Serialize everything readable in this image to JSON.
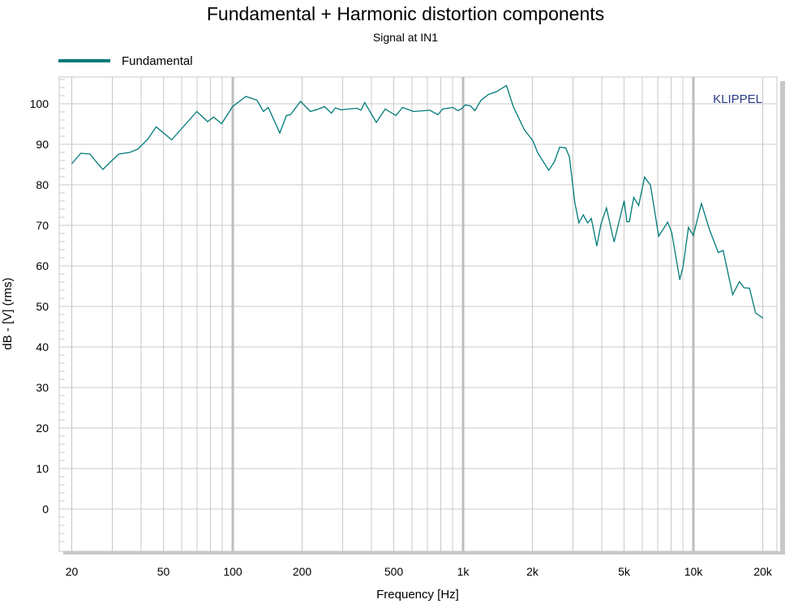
{
  "chart_data": {
    "type": "line",
    "title": "Fundamental + Harmonic distortion components",
    "subtitle": "Signal at IN1",
    "xlabel": "Frequency [Hz]",
    "ylabel": "dB - [V]  (rms)",
    "watermark": "KLIPPEL",
    "xscale": "log",
    "xlim": [
      20,
      20000
    ],
    "ylim": [
      -10.4,
      106.6
    ],
    "grid": true,
    "legend_position": "top-left",
    "x_ticks": [
      {
        "value": 20,
        "label": "20"
      },
      {
        "value": 50,
        "label": "50"
      },
      {
        "value": 100,
        "label": "100"
      },
      {
        "value": 200,
        "label": "200"
      },
      {
        "value": 500,
        "label": "500"
      },
      {
        "value": 1000,
        "label": "1k"
      },
      {
        "value": 2000,
        "label": "2k"
      },
      {
        "value": 5000,
        "label": "5k"
      },
      {
        "value": 10000,
        "label": "10k"
      },
      {
        "value": 20000,
        "label": "20k"
      }
    ],
    "y_ticks": [
      {
        "value": 0,
        "label": "0"
      },
      {
        "value": 10,
        "label": "10"
      },
      {
        "value": 20,
        "label": "20"
      },
      {
        "value": 30,
        "label": "30"
      },
      {
        "value": 40,
        "label": "40"
      },
      {
        "value": 50,
        "label": "50"
      },
      {
        "value": 60,
        "label": "60"
      },
      {
        "value": 70,
        "label": "70"
      },
      {
        "value": 80,
        "label": "80"
      },
      {
        "value": 90,
        "label": "90"
      },
      {
        "value": 100,
        "label": "100"
      }
    ],
    "series": [
      {
        "name": "Fundamental",
        "color": "#007a78",
        "x": [
          20,
          21.9,
          24,
          25.6,
          27.3,
          29.4,
          32,
          35.7,
          38.7,
          42.7,
          46.5,
          54.3,
          69.8,
          77.8,
          82.5,
          89.5,
          99.8,
          114,
          127.2,
          136,
          142.6,
          160,
          171,
          178,
          197,
          217,
          233,
          250,
          268,
          279,
          294,
          346,
          360,
          374,
          420,
          459,
          511,
          546,
          610,
          717,
          777,
          815,
          901,
          950,
          992,
          1021,
          1075,
          1126,
          1197,
          1290,
          1398,
          1543,
          1652,
          1844,
          2013,
          2108,
          2354,
          2487,
          2627,
          2789,
          2894,
          3057,
          3183,
          3326,
          3476,
          3603,
          3808,
          3967,
          4193,
          4524,
          5003,
          5142,
          5271,
          5506,
          5783,
          6137,
          6514,
          7066,
          7729,
          8050,
          8730,
          9018,
          9516,
          9990,
          10834,
          11751,
          12829,
          13470,
          14800,
          15830,
          16610,
          17530,
          18610,
          20060
        ],
        "y": [
          85.2,
          87.8,
          87.6,
          85.6,
          83.8,
          85.6,
          87.6,
          88,
          88.8,
          91.2,
          94.3,
          91.1,
          98.1,
          95.6,
          96.7,
          95.1,
          99.3,
          101.8,
          100.9,
          98.1,
          99.1,
          92.8,
          97.1,
          97.3,
          100.6,
          98.1,
          98.6,
          99.3,
          97.7,
          99,
          98.5,
          98.9,
          98.4,
          100.3,
          95.4,
          98.7,
          97.1,
          99.1,
          98.1,
          98.4,
          97.3,
          98.7,
          99.1,
          98.3,
          98.9,
          99.7,
          99.5,
          98.3,
          100.9,
          102.3,
          103,
          104.5,
          99.3,
          93.6,
          90.8,
          87.9,
          83.6,
          85.6,
          89.3,
          89.1,
          86.9,
          75.6,
          70.6,
          72.6,
          70.6,
          71.7,
          64.9,
          70.3,
          74.3,
          65.9,
          76.1,
          70.9,
          70.9,
          76.9,
          74.9,
          81.9,
          79.9,
          67.3,
          70.8,
          68.3,
          56.6,
          59.9,
          69.5,
          67.5,
          75.4,
          68.9,
          63.3,
          63.8,
          52.9,
          56.1,
          54.6,
          54.5,
          48.4,
          47.1
        ]
      }
    ]
  }
}
